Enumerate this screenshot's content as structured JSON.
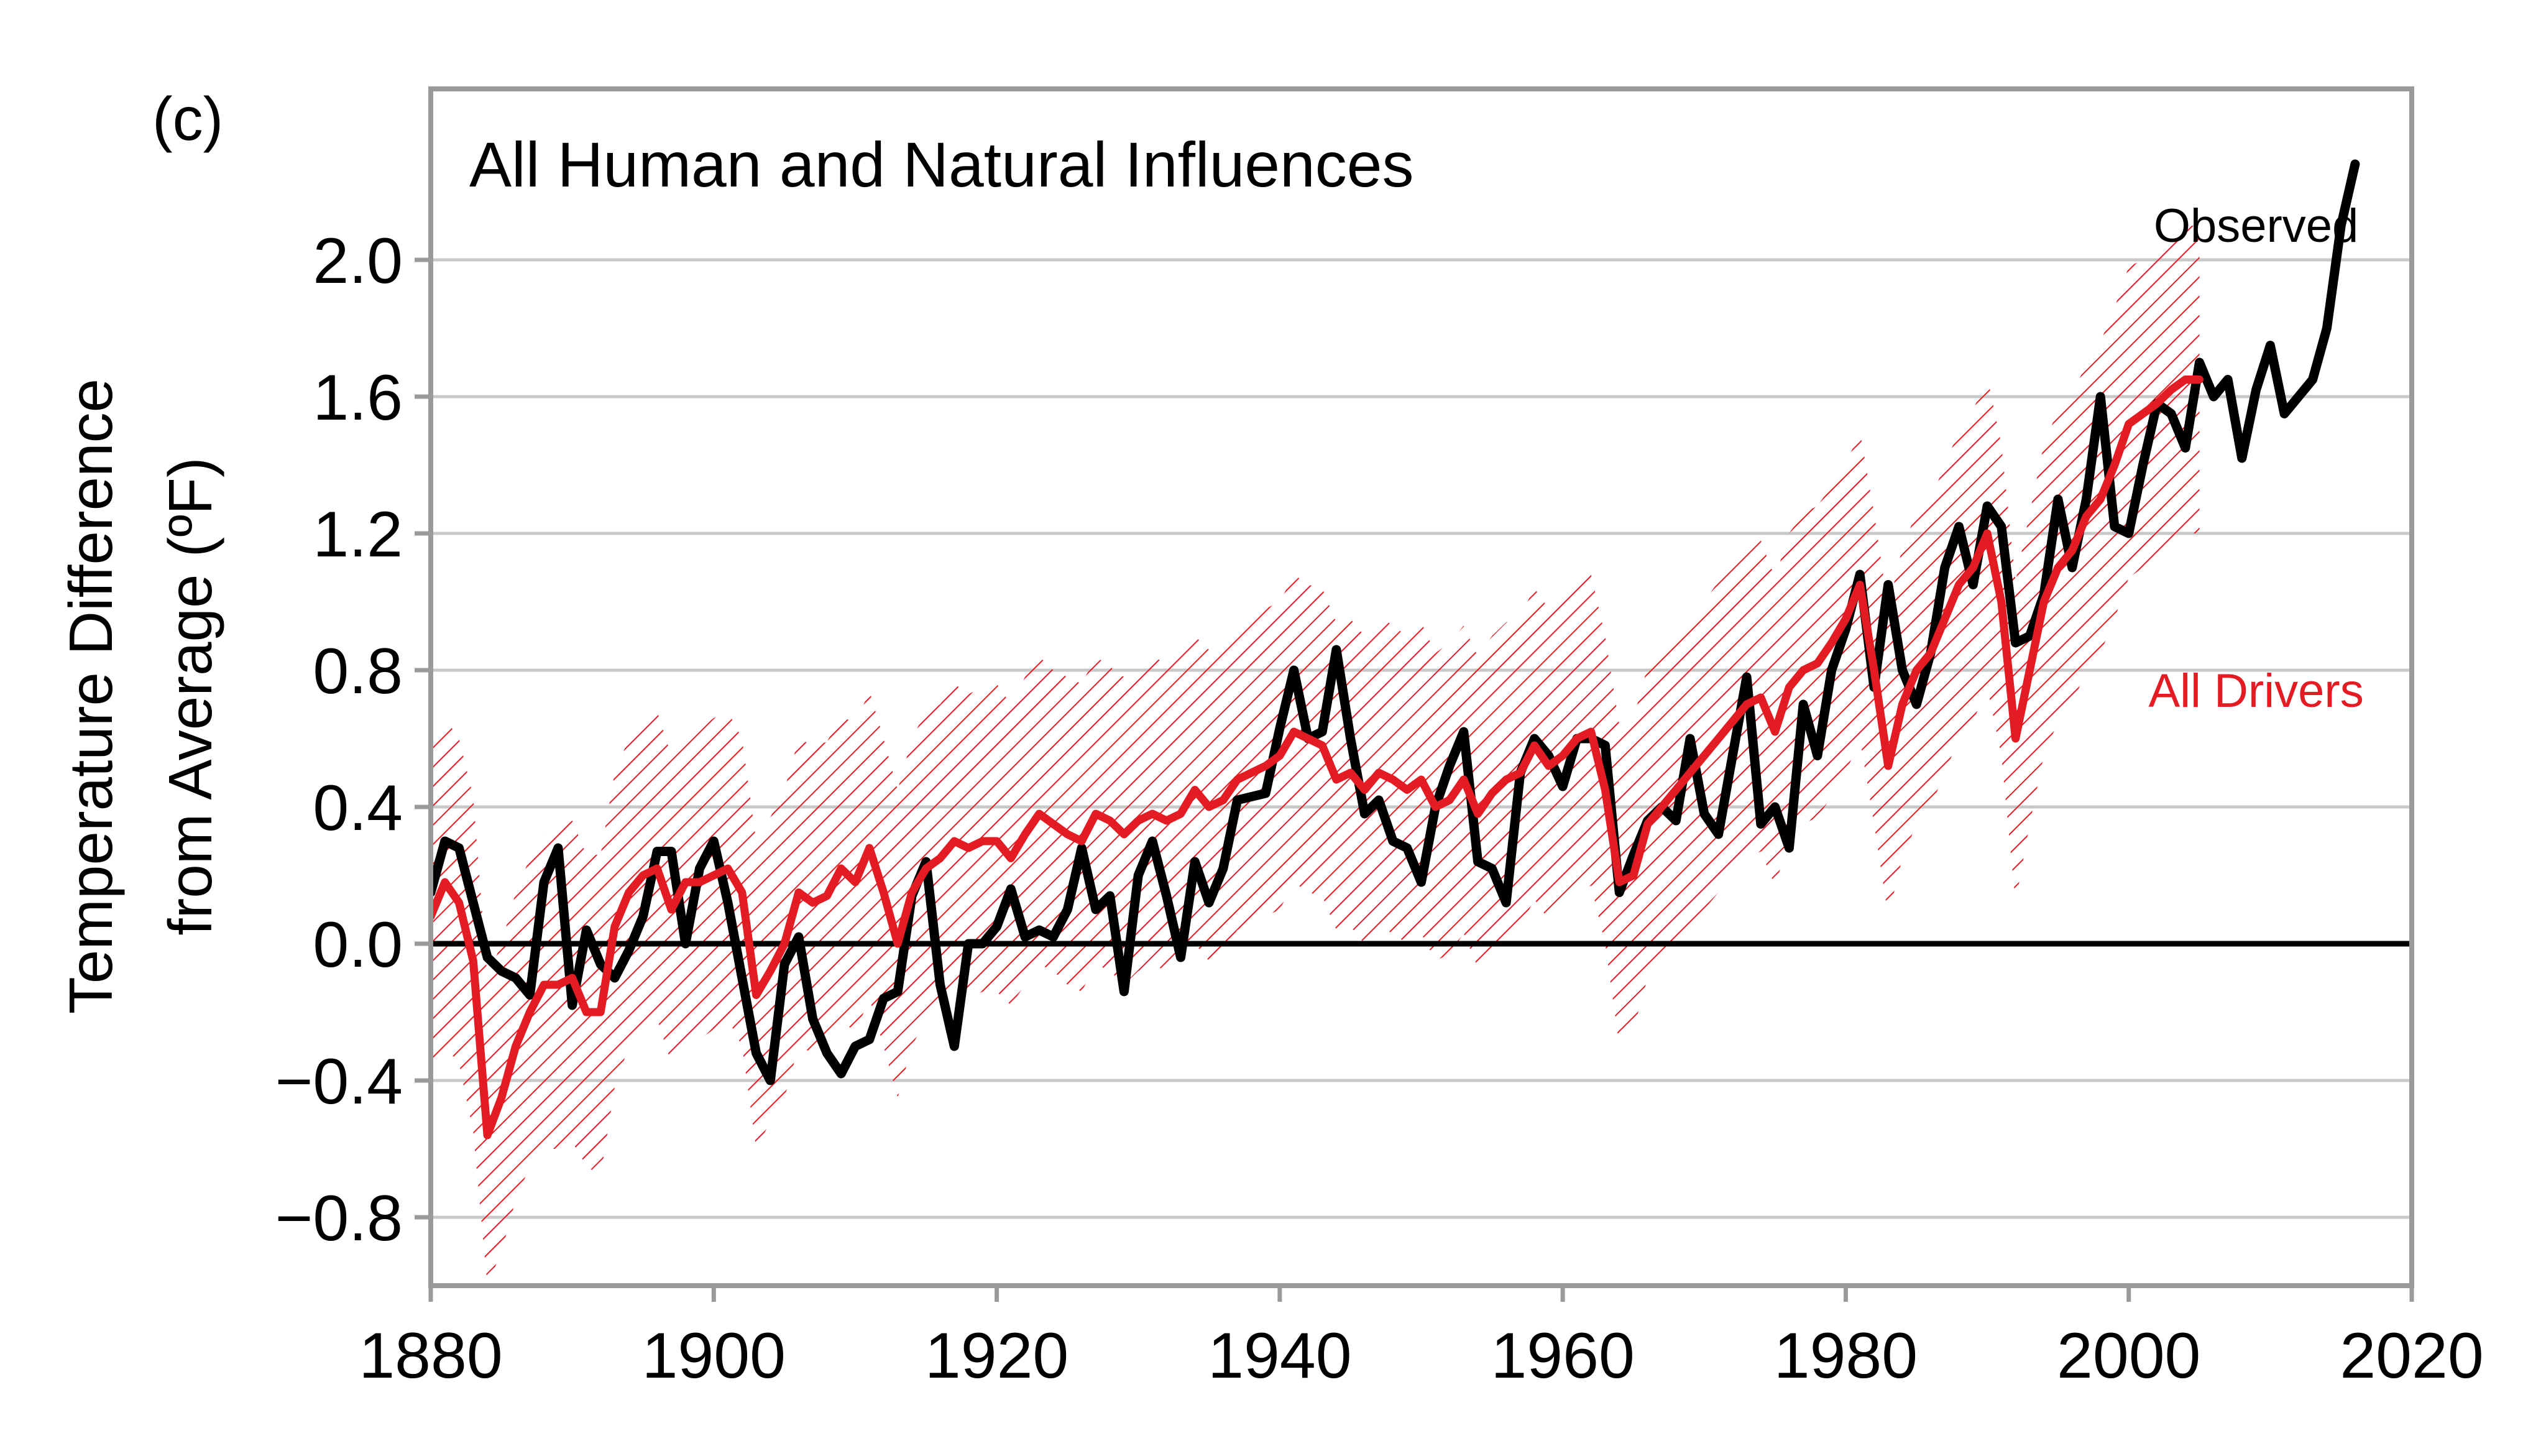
{
  "chart_data": {
    "type": "line",
    "panel_label": "(c)",
    "title": "All Human and Natural Influences",
    "xlabel": "",
    "ylabel_lines": [
      "Temperature Difference",
      "from Average (ºF)"
    ],
    "xlim": [
      1880,
      2020
    ],
    "ylim": [
      -1.0,
      2.5
    ],
    "x_ticks": [
      1880,
      1900,
      1920,
      1940,
      1960,
      1980,
      2000,
      2020
    ],
    "x_tick_labels": [
      "1880",
      "1900",
      "1920",
      "1940",
      "1960",
      "1980",
      "2000",
      "2020"
    ],
    "y_ticks": [
      -0.8,
      -0.4,
      0.0,
      0.4,
      0.8,
      1.2,
      1.6,
      2.0
    ],
    "y_tick_labels": [
      "−0.8",
      "−0.4",
      "0.0",
      "0.4",
      "0.8",
      "1.2",
      "1.6",
      "2.0"
    ],
    "grid": "horizontal",
    "zero_line": true,
    "series": [
      {
        "name": "Observed",
        "color": "#000000",
        "x": [
          1880,
          1881,
          1882,
          1883,
          1884,
          1885,
          1886,
          1887,
          1888,
          1889,
          1890,
          1891,
          1892,
          1893,
          1894,
          1895,
          1896,
          1897,
          1898,
          1899,
          1900,
          1901,
          1902,
          1903,
          1904,
          1905,
          1906,
          1907,
          1908,
          1909,
          1910,
          1911,
          1912,
          1913,
          1914,
          1915,
          1916,
          1917,
          1918,
          1919,
          1920,
          1921,
          1922,
          1923,
          1924,
          1925,
          1926,
          1927,
          1928,
          1929,
          1930,
          1931,
          1932,
          1933,
          1934,
          1935,
          1936,
          1937,
          1938,
          1939,
          1940,
          1941,
          1942,
          1943,
          1944,
          1945,
          1946,
          1947,
          1948,
          1949,
          1950,
          1951,
          1952,
          1953,
          1954,
          1955,
          1956,
          1957,
          1958,
          1959,
          1960,
          1961,
          1962,
          1963,
          1964,
          1965,
          1966,
          1967,
          1968,
          1969,
          1970,
          1971,
          1972,
          1973,
          1974,
          1975,
          1976,
          1977,
          1978,
          1979,
          1980,
          1981,
          1982,
          1983,
          1984,
          1985,
          1986,
          1987,
          1988,
          1989,
          1990,
          1991,
          1992,
          1993,
          1994,
          1995,
          1996,
          1997,
          1998,
          1999,
          2000,
          2001,
          2002,
          2003,
          2004,
          2005,
          2006,
          2007,
          2008,
          2009,
          2010,
          2011,
          2012,
          2013,
          2014,
          2015,
          2016
        ],
        "values": [
          0.15,
          0.3,
          0.28,
          0.12,
          -0.04,
          -0.08,
          -0.1,
          -0.15,
          0.18,
          0.28,
          -0.18,
          0.04,
          -0.06,
          -0.1,
          -0.02,
          0.08,
          0.27,
          0.27,
          0.0,
          0.22,
          0.3,
          0.12,
          -0.1,
          -0.32,
          -0.4,
          -0.06,
          0.02,
          -0.22,
          -0.32,
          -0.38,
          -0.3,
          -0.28,
          -0.16,
          -0.14,
          0.14,
          0.24,
          -0.12,
          -0.3,
          0.0,
          0.0,
          0.05,
          0.16,
          0.02,
          0.04,
          0.02,
          0.1,
          0.28,
          0.1,
          0.14,
          -0.14,
          0.2,
          0.3,
          0.14,
          -0.04,
          0.24,
          0.12,
          0.22,
          0.42,
          0.43,
          0.44,
          0.63,
          0.8,
          0.6,
          0.62,
          0.86,
          0.6,
          0.38,
          0.42,
          0.3,
          0.28,
          0.18,
          0.4,
          0.52,
          0.62,
          0.24,
          0.22,
          0.12,
          0.5,
          0.6,
          0.55,
          0.46,
          0.6,
          0.6,
          0.58,
          0.15,
          0.26,
          0.36,
          0.4,
          0.36,
          0.6,
          0.38,
          0.32,
          0.55,
          0.78,
          0.35,
          0.4,
          0.28,
          0.7,
          0.55,
          0.8,
          0.92,
          1.08,
          0.75,
          1.05,
          0.8,
          0.7,
          0.85,
          1.1,
          1.22,
          1.05,
          1.28,
          1.22,
          0.88,
          0.9,
          1.02,
          1.3,
          1.1,
          1.3,
          1.6,
          1.22,
          1.2,
          1.4,
          1.58,
          1.55,
          1.45,
          1.7,
          1.6,
          1.65,
          1.42,
          1.62,
          1.75,
          1.55,
          1.6,
          1.65,
          1.8,
          2.1,
          2.28
        ]
      },
      {
        "name": "All Drivers",
        "color": "#e31b23",
        "x": [
          1880,
          1881,
          1882,
          1883,
          1884,
          1885,
          1886,
          1887,
          1888,
          1889,
          1890,
          1891,
          1892,
          1893,
          1894,
          1895,
          1896,
          1897,
          1898,
          1899,
          1900,
          1901,
          1902,
          1903,
          1904,
          1905,
          1906,
          1907,
          1908,
          1909,
          1910,
          1911,
          1912,
          1913,
          1914,
          1915,
          1916,
          1917,
          1918,
          1919,
          1920,
          1921,
          1922,
          1923,
          1924,
          1925,
          1926,
          1927,
          1928,
          1929,
          1930,
          1931,
          1932,
          1933,
          1934,
          1935,
          1936,
          1937,
          1938,
          1939,
          1940,
          1941,
          1942,
          1943,
          1944,
          1945,
          1946,
          1947,
          1948,
          1949,
          1950,
          1951,
          1952,
          1953,
          1954,
          1955,
          1956,
          1957,
          1958,
          1959,
          1960,
          1961,
          1962,
          1963,
          1964,
          1965,
          1966,
          1967,
          1968,
          1969,
          1970,
          1971,
          1972,
          1973,
          1974,
          1975,
          1976,
          1977,
          1978,
          1979,
          1980,
          1981,
          1982,
          1983,
          1984,
          1985,
          1986,
          1987,
          1988,
          1989,
          1990,
          1991,
          1992,
          1993,
          1994,
          1995,
          1996,
          1997,
          1998,
          1999,
          2000,
          2001,
          2002,
          2003,
          2004,
          2005
        ],
        "values": [
          0.08,
          0.18,
          0.12,
          -0.05,
          -0.56,
          -0.45,
          -0.3,
          -0.2,
          -0.12,
          -0.12,
          -0.1,
          -0.2,
          -0.2,
          0.05,
          0.15,
          0.2,
          0.22,
          0.1,
          0.18,
          0.18,
          0.2,
          0.22,
          0.15,
          -0.15,
          -0.08,
          0.0,
          0.15,
          0.12,
          0.14,
          0.22,
          0.18,
          0.28,
          0.15,
          0.0,
          0.15,
          0.22,
          0.25,
          0.3,
          0.28,
          0.3,
          0.3,
          0.25,
          0.32,
          0.38,
          0.35,
          0.32,
          0.3,
          0.38,
          0.36,
          0.32,
          0.36,
          0.38,
          0.36,
          0.38,
          0.45,
          0.4,
          0.42,
          0.48,
          0.5,
          0.52,
          0.55,
          0.62,
          0.6,
          0.58,
          0.48,
          0.5,
          0.45,
          0.5,
          0.48,
          0.45,
          0.48,
          0.4,
          0.42,
          0.48,
          0.38,
          0.44,
          0.48,
          0.5,
          0.58,
          0.52,
          0.55,
          0.6,
          0.62,
          0.45,
          0.18,
          0.2,
          0.35,
          0.4,
          0.45,
          0.5,
          0.55,
          0.6,
          0.65,
          0.7,
          0.72,
          0.62,
          0.75,
          0.8,
          0.82,
          0.88,
          0.95,
          1.05,
          0.8,
          0.52,
          0.7,
          0.8,
          0.85,
          0.95,
          1.05,
          1.1,
          1.2,
          1.0,
          0.6,
          0.8,
          1.0,
          1.1,
          1.15,
          1.25,
          1.3,
          1.4,
          1.52,
          1.55,
          1.58,
          1.62,
          1.65,
          1.65
        ],
        "band_lower": [
          -0.4,
          -0.3,
          -0.35,
          -0.55,
          -1.0,
          -0.9,
          -0.75,
          -0.65,
          -0.6,
          -0.6,
          -0.58,
          -0.65,
          -0.68,
          -0.42,
          -0.3,
          -0.25,
          -0.22,
          -0.35,
          -0.28,
          -0.28,
          -0.25,
          -0.22,
          -0.3,
          -0.6,
          -0.52,
          -0.45,
          -0.3,
          -0.32,
          -0.3,
          -0.22,
          -0.26,
          -0.16,
          -0.3,
          -0.45,
          -0.3,
          -0.22,
          -0.18,
          -0.14,
          -0.16,
          -0.14,
          -0.14,
          -0.18,
          -0.12,
          -0.06,
          -0.08,
          -0.12,
          -0.14,
          -0.06,
          -0.08,
          -0.12,
          -0.08,
          -0.06,
          -0.08,
          -0.06,
          0.0,
          -0.05,
          -0.02,
          0.04,
          0.06,
          0.08,
          0.1,
          0.18,
          0.15,
          0.14,
          0.04,
          0.05,
          0.0,
          0.05,
          0.03,
          0.0,
          0.03,
          -0.05,
          -0.03,
          0.03,
          -0.07,
          -0.01,
          0.03,
          0.05,
          0.13,
          0.07,
          0.1,
          0.15,
          0.17,
          0.0,
          -0.3,
          -0.25,
          -0.1,
          -0.05,
          0.0,
          0.05,
          0.1,
          0.15,
          0.2,
          0.25,
          0.27,
          0.17,
          0.3,
          0.35,
          0.37,
          0.43,
          0.5,
          0.6,
          0.35,
          0.08,
          0.25,
          0.35,
          0.4,
          0.5,
          0.6,
          0.65,
          0.75,
          0.55,
          0.12,
          0.35,
          0.55,
          0.65,
          0.7,
          0.8,
          0.85,
          0.95,
          1.07,
          1.1,
          1.13,
          1.17,
          1.2,
          1.2
        ],
        "band_upper": [
          0.6,
          0.66,
          0.6,
          0.43,
          -0.1,
          0.0,
          0.15,
          0.25,
          0.33,
          0.33,
          0.36,
          0.26,
          0.26,
          0.5,
          0.6,
          0.65,
          0.68,
          0.55,
          0.63,
          0.63,
          0.66,
          0.68,
          0.6,
          0.3,
          0.37,
          0.45,
          0.6,
          0.58,
          0.59,
          0.67,
          0.64,
          0.74,
          0.6,
          0.45,
          0.6,
          0.68,
          0.7,
          0.76,
          0.73,
          0.75,
          0.76,
          0.7,
          0.78,
          0.84,
          0.8,
          0.78,
          0.76,
          0.84,
          0.81,
          0.78,
          0.82,
          0.84,
          0.82,
          0.84,
          0.9,
          0.86,
          0.88,
          0.94,
          0.95,
          0.98,
          1.0,
          1.08,
          1.05,
          1.04,
          0.94,
          0.95,
          0.9,
          0.96,
          0.93,
          0.9,
          0.94,
          0.85,
          0.88,
          0.93,
          0.84,
          0.9,
          0.94,
          0.96,
          1.04,
          0.98,
          1.0,
          1.06,
          1.08,
          0.9,
          0.64,
          0.66,
          0.81,
          0.86,
          0.9,
          0.96,
          1.0,
          1.06,
          1.1,
          1.16,
          1.18,
          1.07,
          1.2,
          1.26,
          1.28,
          1.34,
          1.4,
          1.5,
          1.26,
          0.98,
          1.16,
          1.26,
          1.3,
          1.4,
          1.5,
          1.56,
          1.66,
          1.46,
          1.06,
          1.26,
          1.46,
          1.56,
          1.6,
          1.7,
          1.76,
          1.86,
          1.98,
          2.0,
          2.04,
          2.08,
          2.1,
          2.1
        ]
      }
    ],
    "annotations": [
      {
        "text": "Observed",
        "x": 2009,
        "y": 2.1,
        "color": "#000000"
      },
      {
        "text": "All Drivers",
        "x": 2009,
        "y": 0.74,
        "color": "#e31b23"
      }
    ]
  }
}
